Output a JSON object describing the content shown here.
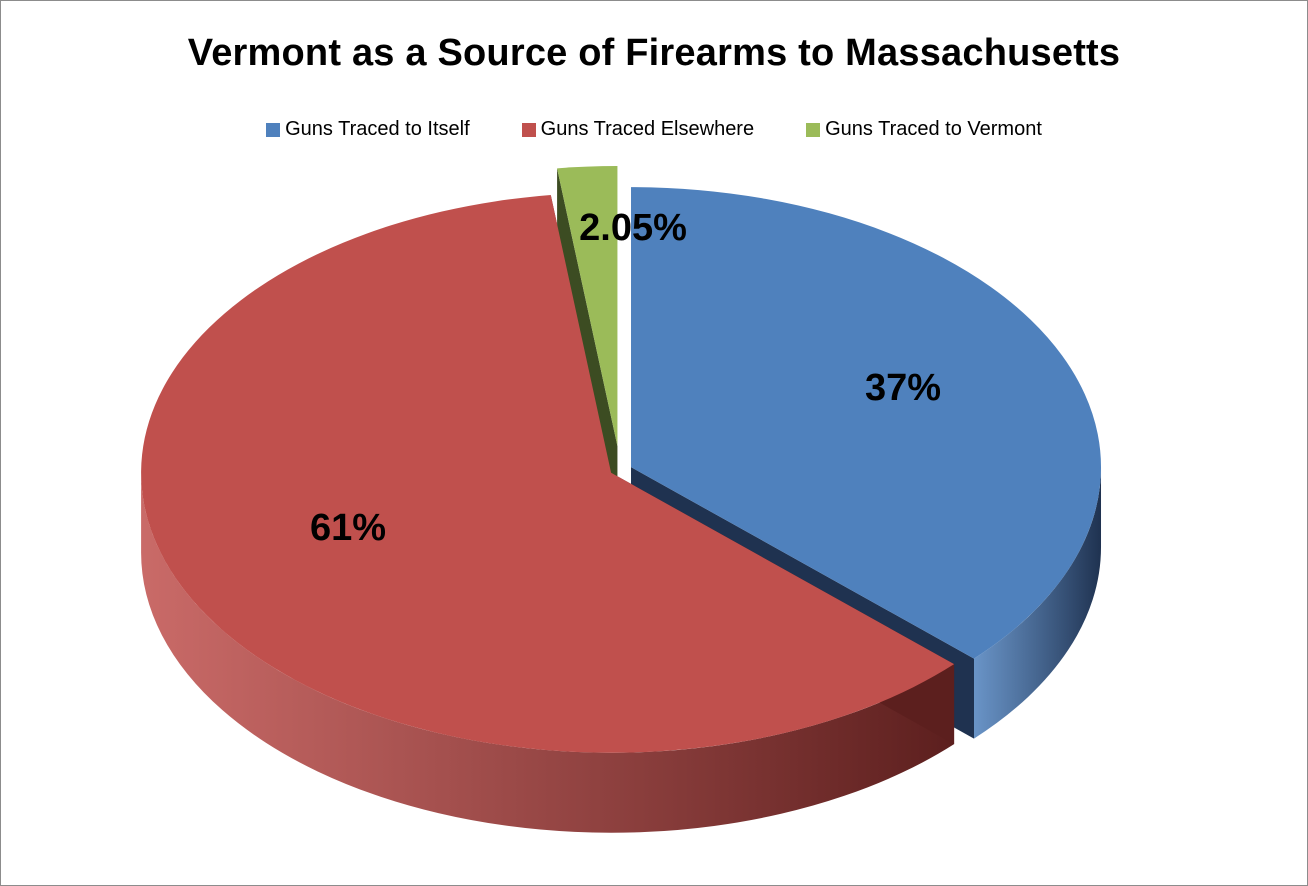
{
  "chart_data": {
    "type": "pie",
    "title": "Vermont as a Source of Firearms to Massachusetts",
    "legend_position": "top",
    "three_d": true,
    "exploded": true,
    "slices": [
      {
        "name": "Guns Traced to Itself",
        "value": 37,
        "label": "37%",
        "color": "#4F81BD",
        "side_color": "#1F3250"
      },
      {
        "name": "Guns Traced Elsewhere",
        "value": 61,
        "label": "61%",
        "color": "#C0504D",
        "side_color": "#5C1F1E"
      },
      {
        "name": "Guns Traced to Vermont",
        "value": 2.05,
        "label": "2.05%",
        "color": "#9BBB59",
        "side_color": "#3C4C22"
      }
    ]
  }
}
